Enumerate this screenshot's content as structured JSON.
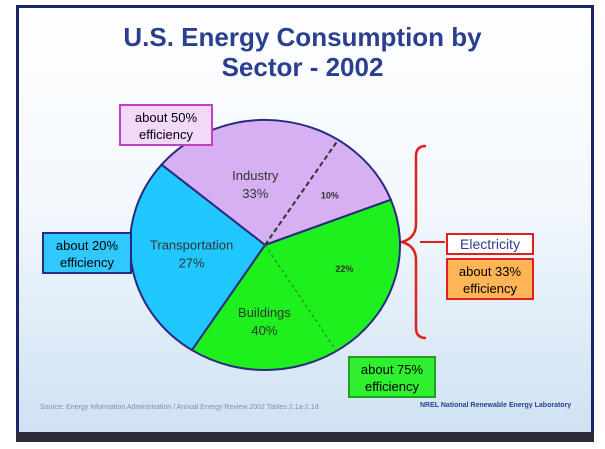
{
  "chart_data": {
    "type": "pie",
    "title": "U.S. Energy Consumption by Sector - 2002",
    "categories": [
      "Industry",
      "Buildings",
      "Transportation"
    ],
    "values": [
      33,
      40,
      27
    ],
    "value_labels": [
      "33%",
      "40%",
      "27%"
    ],
    "colors": [
      "#d6b0f2",
      "#1ef01e",
      "#20c8ff"
    ],
    "electricity": {
      "label": "Electricity",
      "values": [
        10,
        22
      ],
      "value_labels": [
        "10%",
        "22%"
      ]
    },
    "annotations": [
      "about 50% efficiency",
      "about 20% efficiency",
      "about 33% efficiency",
      "about 75% efficiency"
    ],
    "source": "Source: Energy Information Administration / Annual Energy Review 2002 Tables 2.1a-2.1d",
    "logo": "NREL National Renewable Energy Laboratory"
  }
}
